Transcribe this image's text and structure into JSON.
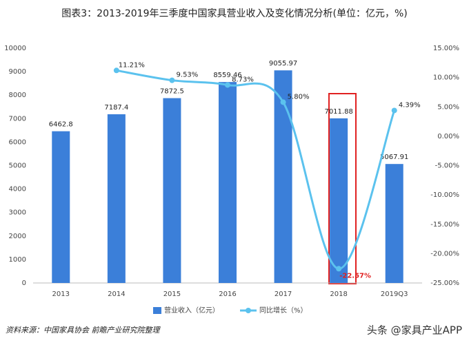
{
  "chart_data": {
    "type": "bar_line",
    "title": "图表3：2013-2019年三季度中国家具营业收入及变化情况分析(单位：亿元，%)",
    "categories": [
      "2013",
      "2014",
      "2015",
      "2016",
      "2017",
      "2018",
      "2019Q3"
    ],
    "series": [
      {
        "name": "营业收入（亿元）",
        "type": "bar",
        "color": "#3b7fd9",
        "values": [
          6462.8,
          7187.4,
          7872.5,
          8559.46,
          9055.97,
          7011.88,
          5067.91
        ]
      },
      {
        "name": "同比增长（%）",
        "type": "line",
        "axis": "y2",
        "color": "#5bc2ee",
        "values": [
          null,
          11.21,
          9.53,
          8.73,
          5.8,
          -22.57,
          4.39
        ],
        "value_labels": [
          null,
          "11.21%",
          "9.53%",
          "8.73%",
          "5.80%",
          "-22.57%",
          "4.39%"
        ]
      }
    ],
    "ylim": [
      0,
      10000
    ],
    "yticks": [
      0,
      1000,
      2000,
      3000,
      4000,
      5000,
      6000,
      7000,
      8000,
      9000,
      10000
    ],
    "y2lim": [
      -25,
      15
    ],
    "y2ticks": [
      {
        "value": -25,
        "label": "-25.00%"
      },
      {
        "value": -20,
        "label": "-20.00%"
      },
      {
        "value": -15,
        "label": "-15.00%"
      },
      {
        "value": -10,
        "label": "-10.00%"
      },
      {
        "value": -5,
        "label": "-5.00%"
      },
      {
        "value": 0,
        "label": "0.00%"
      },
      {
        "value": 5,
        "label": "5.00%"
      },
      {
        "value": 10,
        "label": "10.00%"
      },
      {
        "value": 15,
        "label": "15.00%"
      }
    ],
    "source": "资料来源：中国家具协会 前瞻产业研究院整理",
    "watermark": "头条 @家具产业APP"
  }
}
